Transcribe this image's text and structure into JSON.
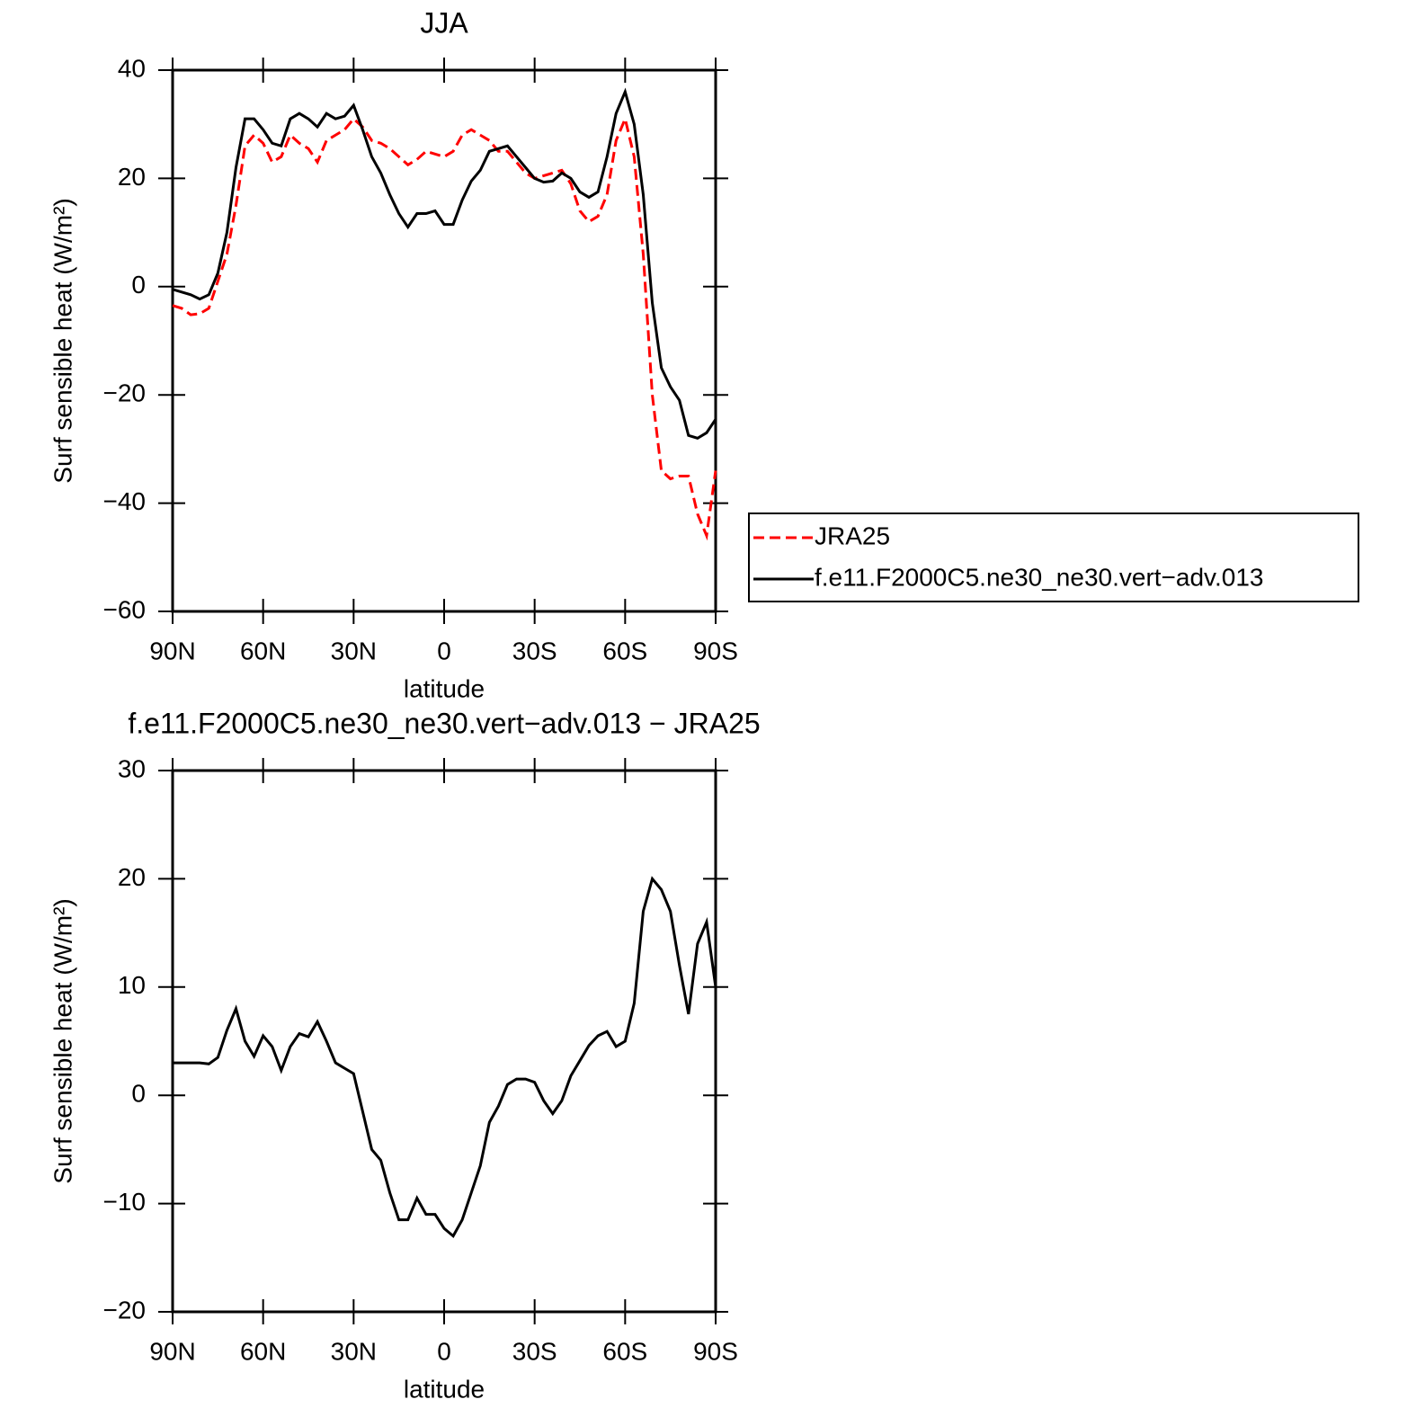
{
  "chart_data": [
    {
      "type": "line",
      "title": "JJA",
      "xlabel": "latitude",
      "ylabel": "Surf sensible heat (W/m²)",
      "x": [
        90,
        87,
        84,
        81,
        78,
        75,
        72,
        69,
        66,
        63,
        60,
        57,
        54,
        51,
        48,
        45,
        42,
        39,
        36,
        33,
        30,
        27,
        24,
        21,
        18,
        15,
        12,
        9,
        6,
        3,
        0,
        -3,
        -6,
        -9,
        -12,
        -15,
        -18,
        -21,
        -24,
        -27,
        -30,
        -33,
        -36,
        -39,
        -42,
        -45,
        -48,
        -51,
        -54,
        -57,
        -60,
        -63,
        -66,
        -69,
        -72,
        -75,
        -78,
        -81,
        -84,
        -87,
        -90
      ],
      "xlim": [
        90,
        -90
      ],
      "xticks": [
        {
          "value": 90,
          "label": "90N"
        },
        {
          "value": 60,
          "label": "60N"
        },
        {
          "value": 30,
          "label": "30N"
        },
        0,
        {
          "value": -30,
          "label": "30S"
        },
        {
          "value": -60,
          "label": "60S"
        },
        {
          "value": -90,
          "label": "90S"
        }
      ],
      "ylim": [
        -60,
        40
      ],
      "yticks": [
        {
          "value": -60,
          "label": "−60"
        },
        {
          "value": -40,
          "label": "−40"
        },
        {
          "value": -20,
          "label": "−20"
        },
        0,
        20,
        40
      ],
      "series": [
        {
          "name": "JRA25",
          "color": "#ff0000",
          "line_style": "dashed",
          "values": [
            -3.5,
            -4,
            -5.2,
            -5,
            -4,
            1,
            6,
            15,
            26,
            28,
            26.5,
            23,
            24,
            28,
            26.5,
            25.5,
            23,
            27,
            28,
            29,
            31,
            29.5,
            27,
            26.5,
            25.5,
            24,
            22.5,
            23.5,
            25,
            24.5,
            24,
            25,
            28,
            29,
            28,
            27,
            25,
            25,
            23,
            21,
            20,
            20.5,
            21,
            21.5,
            19,
            14,
            12,
            13,
            17,
            27,
            31,
            24,
            6,
            -20,
            -34,
            -35.5,
            -35,
            -35,
            -42,
            -46,
            -34
          ]
        },
        {
          "name": "f.e11.F2000C5.ne30_ne30.vert−adv.013",
          "color": "#000000",
          "line_style": "solid",
          "values": [
            -0.5,
            -1,
            -1.5,
            -2.3,
            -1.5,
            2.5,
            10,
            22,
            31,
            31,
            29,
            26.5,
            26,
            31,
            32,
            31,
            29.5,
            32,
            31,
            31.5,
            33.5,
            29,
            24,
            21,
            17,
            13.5,
            11,
            13.5,
            13.5,
            14,
            11.5,
            11.5,
            16,
            19.5,
            21.5,
            25,
            25.5,
            26,
            24,
            22,
            20,
            19.3,
            19.5,
            21,
            20,
            17.5,
            16.5,
            17.5,
            24,
            32,
            36,
            30,
            17,
            -3,
            -15,
            -18.5,
            -21,
            -27.5,
            -28,
            -27,
            -24.5
          ]
        }
      ]
    },
    {
      "type": "line",
      "title": "f.e11.F2000C5.ne30_ne30.vert−adv.013 − JRA25",
      "xlabel": "latitude",
      "ylabel": "Surf sensible heat (W/m²)",
      "x": [
        90,
        87,
        84,
        81,
        78,
        75,
        72,
        69,
        66,
        63,
        60,
        57,
        54,
        51,
        48,
        45,
        42,
        39,
        36,
        33,
        30,
        27,
        24,
        21,
        18,
        15,
        12,
        9,
        6,
        3,
        0,
        -3,
        -6,
        -9,
        -12,
        -15,
        -18,
        -21,
        -24,
        -27,
        -30,
        -33,
        -36,
        -39,
        -42,
        -45,
        -48,
        -51,
        -54,
        -57,
        -60,
        -63,
        -66,
        -69,
        -72,
        -75,
        -78,
        -81,
        -84,
        -87,
        -90
      ],
      "xlim": [
        90,
        -90
      ],
      "xticks": [
        {
          "value": 90,
          "label": "90N"
        },
        {
          "value": 60,
          "label": "60N"
        },
        {
          "value": 30,
          "label": "30N"
        },
        0,
        {
          "value": -30,
          "label": "30S"
        },
        {
          "value": -60,
          "label": "60S"
        },
        {
          "value": -90,
          "label": "90S"
        }
      ],
      "ylim": [
        -20,
        30
      ],
      "yticks": [
        {
          "value": -20,
          "label": "−20"
        },
        {
          "value": -10,
          "label": "−10"
        },
        0,
        10,
        20,
        30
      ],
      "series": [
        {
          "color": "#000000",
          "line_style": "solid",
          "values": [
            3,
            3,
            3,
            3,
            2.9,
            3.5,
            6,
            8,
            5,
            3.6,
            5.5,
            4.5,
            2.3,
            4.5,
            5.7,
            5.4,
            6.8,
            5,
            3,
            2.5,
            2,
            -1.5,
            -5,
            -6,
            -9,
            -11.5,
            -11.5,
            -9.5,
            -11,
            -11,
            -12.3,
            -13,
            -11.5,
            -9,
            -6.5,
            -2.5,
            -1,
            1,
            1.5,
            1.5,
            1.2,
            -0.5,
            -1.7,
            -0.5,
            1.8,
            3.2,
            4.6,
            5.5,
            5.9,
            4.5,
            5,
            8.5,
            17,
            20,
            19,
            17,
            12,
            7.5,
            14,
            16,
            10
          ]
        }
      ]
    }
  ]
}
